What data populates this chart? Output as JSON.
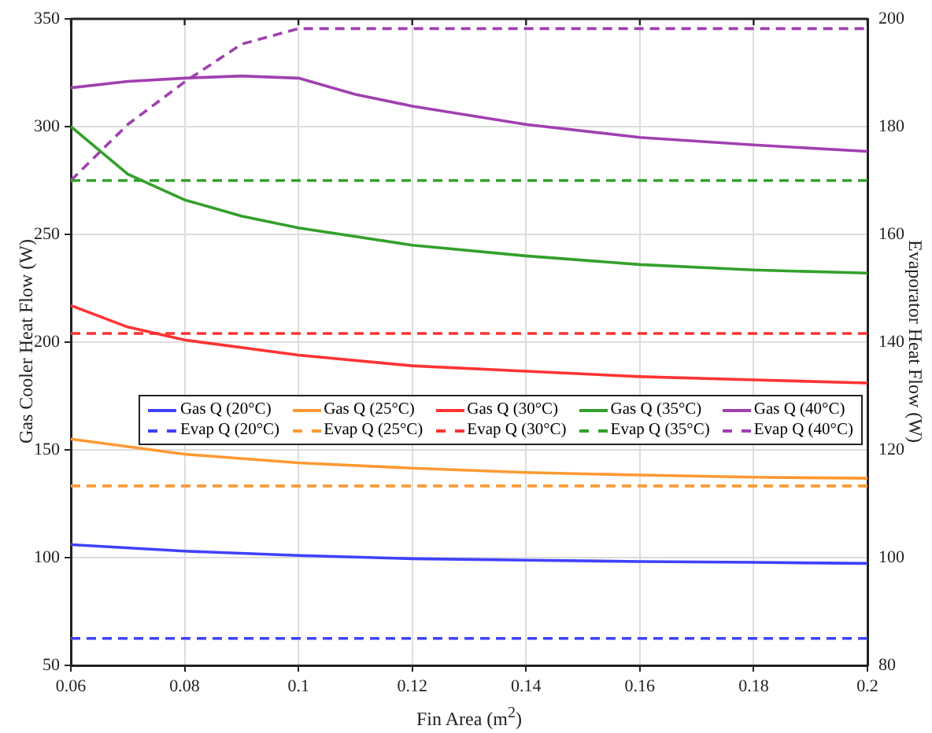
{
  "chart_data": {
    "type": "line",
    "xlabel": "Fin Area (m$^{2}$)",
    "ylabel": "Gas Cooler Heat Flow (W)",
    "y2label": "Evaporator Heat Flow (W)",
    "xlim": [
      0.06,
      0.2
    ],
    "xticks": [
      0.06,
      0.08,
      0.1,
      0.12,
      0.14,
      0.16,
      0.18,
      0.2
    ],
    "ylim": [
      50,
      350
    ],
    "yticks": [
      50,
      100,
      150,
      200,
      250,
      300,
      350
    ],
    "y2lim": [
      80,
      200
    ],
    "y2ticks": [
      80,
      100,
      120,
      140,
      160,
      180,
      200
    ],
    "grid": true,
    "legend": "right",
    "marker": "none",
    "series": [
      {
        "name": "Gas Q (20°C)",
        "color": "#4040ff",
        "line_style": "solid",
        "x": [
          0.06,
          0.08,
          0.1,
          0.12,
          0.14,
          0.16,
          0.18,
          0.2
        ],
        "values": [
          106,
          103,
          101,
          99.5,
          98.8,
          98.2,
          97.8,
          97.3
        ]
      },
      {
        "name": "Gas Q (25°C)",
        "color": "#ff9933",
        "line_style": "solid",
        "x": [
          0.06,
          0.08,
          0.1,
          0.12,
          0.14,
          0.16,
          0.18,
          0.2
        ],
        "values": [
          155,
          148,
          144,
          141.5,
          139.5,
          138.3,
          137.3,
          136.8
        ]
      },
      {
        "name": "Gas Q (30°C)",
        "color": "#ff3333",
        "line_style": "solid",
        "x": [
          0.06,
          0.07,
          0.08,
          0.1,
          0.12,
          0.14,
          0.16,
          0.18,
          0.2
        ],
        "values": [
          217,
          207,
          201,
          194,
          189,
          186.5,
          184,
          182.5,
          181
        ]
      },
      {
        "name": "Gas Q (35°C)",
        "color": "#33a02c",
        "line_style": "solid",
        "x": [
          0.06,
          0.07,
          0.08,
          0.09,
          0.1,
          0.12,
          0.14,
          0.16,
          0.18,
          0.2
        ],
        "values": [
          300,
          278,
          266,
          258.5,
          253,
          245,
          240,
          236,
          233.5,
          232
        ]
      },
      {
        "name": "Gas Q (40°C)",
        "color": "#a040b0",
        "line_style": "solid",
        "x": [
          0.06,
          0.07,
          0.08,
          0.09,
          0.1,
          0.11,
          0.12,
          0.14,
          0.16,
          0.18,
          0.2
        ],
        "values": [
          318,
          321,
          322.5,
          323.5,
          322.5,
          315,
          309.5,
          301,
          295,
          291.5,
          288.5
        ]
      },
      {
        "name": "Evap Q (20°C)",
        "color": "#4040ff",
        "line_style": "dashed",
        "axis": "y2",
        "x": [
          0.06,
          0.2
        ],
        "values": [
          85,
          85
        ]
      },
      {
        "name": "Evap Q (25°C)",
        "color": "#ff9933",
        "line_style": "dashed",
        "axis": "y2",
        "x": [
          0.06,
          0.2
        ],
        "values": [
          113.3,
          113.3
        ]
      },
      {
        "name": "Evap Q (30°C)",
        "color": "#ff3333",
        "line_style": "dashed",
        "axis": "y2",
        "x": [
          0.06,
          0.2
        ],
        "values": [
          141.6,
          141.6
        ]
      },
      {
        "name": "Evap Q (35°C)",
        "color": "#33a02c",
        "line_style": "dashed",
        "axis": "y2",
        "x": [
          0.06,
          0.2
        ],
        "values": [
          170,
          170
        ]
      },
      {
        "name": "Evap Q (40°C)",
        "color": "#a040b0",
        "line_style": "dashed",
        "axis": "y2",
        "x": [
          0.06,
          0.07,
          0.08,
          0.09,
          0.1,
          0.2
        ],
        "values": [
          170,
          180.4,
          188.3,
          195.3,
          198.2,
          198.2
        ]
      }
    ]
  }
}
